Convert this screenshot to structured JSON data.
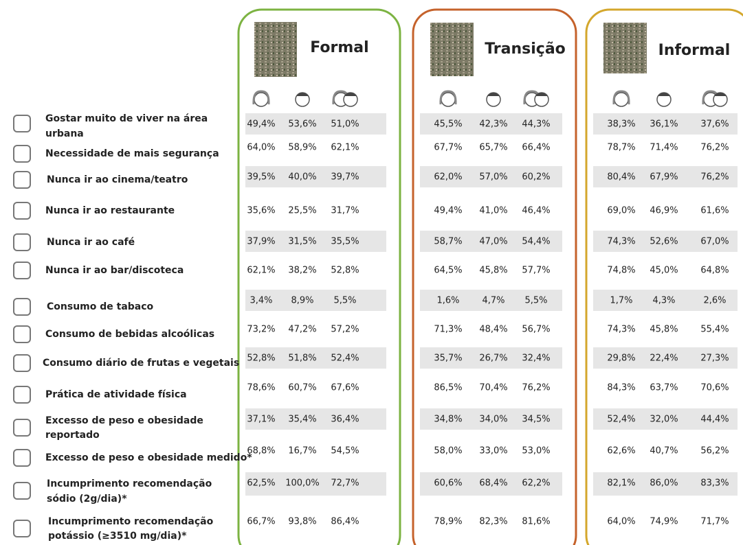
{
  "groups": [
    {
      "title": "Formal"
    },
    {
      "title": "Transição"
    },
    {
      "title": "Informal"
    }
  ],
  "rows": [
    {
      "label": [
        "Gostar muito de viver na área",
        "urbana"
      ],
      "values": [
        "49,4%",
        "53,6%",
        "51,0%",
        "45,5%",
        "42,3%",
        "44,3%",
        "38,3%",
        "36,1%",
        "37,6%"
      ]
    },
    {
      "label": [
        "Necessidade de mais segurança"
      ],
      "values": [
        "64,0%",
        "58,9%",
        "62,1%",
        "67,7%",
        "65,7%",
        "66,4%",
        "78,7%",
        "71,4%",
        "76,2%"
      ]
    },
    {
      "label": [
        "Nunca ir ao cinema/teatro"
      ],
      "values": [
        "39,5%",
        "40,0%",
        "39,7%",
        "62,0%",
        "57,0%",
        "60,2%",
        "80,4%",
        "67,9%",
        "76,2%"
      ]
    },
    {
      "label": [
        "Nunca ir ao restaurante"
      ],
      "values": [
        "35,6%",
        "25,5%",
        "31,7%",
        "49,4%",
        "41,0%",
        "46,4%",
        "69,0%",
        "46,9%",
        "61,6%"
      ]
    },
    {
      "label": [
        "Nunca ir ao café"
      ],
      "values": [
        "37,9%",
        "31,5%",
        "35,5%",
        "58,7%",
        "47,0%",
        "54,4%",
        "74,3%",
        "52,6%",
        "67,0%"
      ]
    },
    {
      "label": [
        "Nunca ir ao bar/discoteca"
      ],
      "values": [
        "62,1%",
        "38,2%",
        "52,8%",
        "64,5%",
        "45,8%",
        "57,7%",
        "74,8%",
        "45,0%",
        "64,8%"
      ]
    },
    {
      "label": [
        "Consumo de tabaco"
      ],
      "values": [
        "3,4%",
        "8,9%",
        "5,5%",
        "1,6%",
        "4,7%",
        "5,5%",
        "1,7%",
        "4,3%",
        "2,6%"
      ]
    },
    {
      "label": [
        "Consumo de bebidas alcoólicas"
      ],
      "values": [
        "73,2%",
        "47,2%",
        "57,2%",
        "71,3%",
        "48,4%",
        "56,7%",
        "74,3%",
        "45,8%",
        "55,4%"
      ]
    },
    {
      "label": [
        "Consumo diário de frutas e vegetais"
      ],
      "values": [
        "52,8%",
        "51,8%",
        "52,4%",
        "35,7%",
        "26,7%",
        "32,4%",
        "29,8%",
        "22,4%",
        "27,3%"
      ]
    },
    {
      "label": [
        "Prática de atividade física"
      ],
      "values": [
        "78,6%",
        "60,7%",
        "67,6%",
        "86,5%",
        "70,4%",
        "76,2%",
        "84,3%",
        "63,7%",
        "70,6%"
      ]
    },
    {
      "label": [
        "Excesso de peso e obesidade",
        "reportado"
      ],
      "values": [
        "37,1%",
        "35,4%",
        "36,4%",
        "34,8%",
        "34,0%",
        "34,5%",
        "52,4%",
        "32,0%",
        "44,4%"
      ]
    },
    {
      "label": [
        "Excesso de peso e obesidade medido*"
      ],
      "values": [
        "68,8%",
        "16,7%",
        "54,5%",
        "58,0%",
        "33,0%",
        "53,0%",
        "62,6%",
        "40,7%",
        "56,2%"
      ]
    },
    {
      "label": [
        "Incumprimento recomendação",
        "sódio (2g/dia)*"
      ],
      "values": [
        "62,5%",
        "100,0%",
        "72,7%",
        "60,6%",
        "68,4%",
        "62,2%",
        "82,1%",
        "86,0%",
        "83,3%"
      ]
    },
    {
      "label": [
        "Incumprimento recomendação",
        "potássio (≥3510  mg/dia)*"
      ],
      "values": [
        "66,7%",
        "93,8%",
        "86,4%",
        "78,9%",
        "82,3%",
        "81,6%",
        "64,0%",
        "74,9%",
        "71,7%"
      ]
    }
  ]
}
